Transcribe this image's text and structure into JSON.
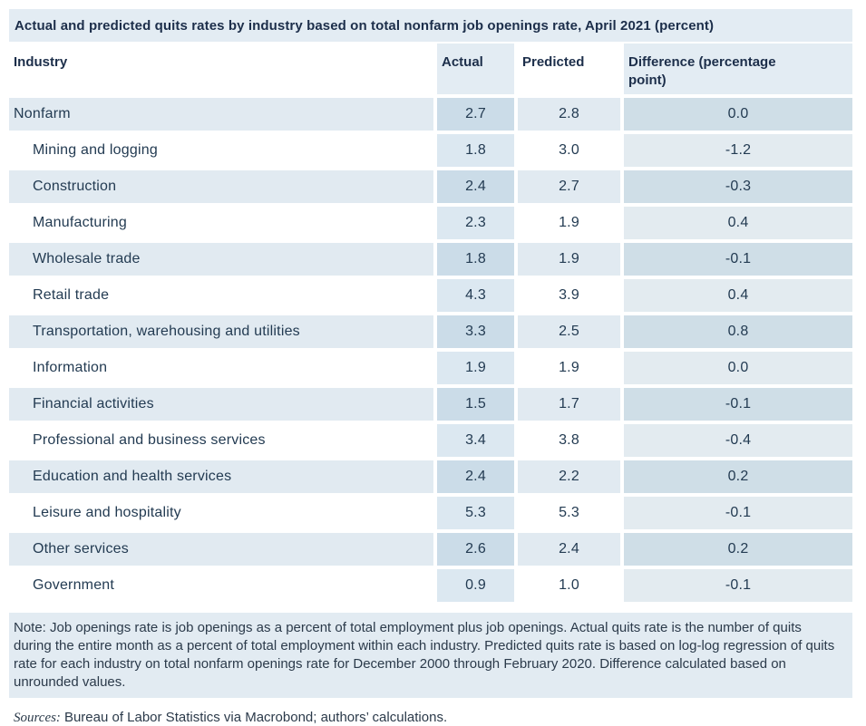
{
  "title": "Actual and predicted quits rates by industry based on total nonfarm job openings rate, April 2021 (percent)",
  "table": {
    "header": {
      "industry": "Industry",
      "actual": "Actual",
      "predicted": "Predicted",
      "difference": "Difference (percentage point)"
    },
    "rows": [
      {
        "industry": "Nonfarm",
        "indent": false,
        "actual": "2.7",
        "predicted": "2.8",
        "difference": "0.0"
      },
      {
        "industry": "Mining and logging",
        "indent": true,
        "actual": "1.8",
        "predicted": "3.0",
        "difference": "-1.2"
      },
      {
        "industry": "Construction",
        "indent": true,
        "actual": "2.4",
        "predicted": "2.7",
        "difference": "-0.3"
      },
      {
        "industry": "Manufacturing",
        "indent": true,
        "actual": "2.3",
        "predicted": "1.9",
        "difference": "0.4"
      },
      {
        "industry": "Wholesale trade",
        "indent": true,
        "actual": "1.8",
        "predicted": "1.9",
        "difference": "-0.1"
      },
      {
        "industry": "Retail trade",
        "indent": true,
        "actual": "4.3",
        "predicted": "3.9",
        "difference": "0.4"
      },
      {
        "industry": "Transportation, warehousing and utilities",
        "indent": true,
        "actual": "3.3",
        "predicted": "2.5",
        "difference": "0.8"
      },
      {
        "industry": "Information",
        "indent": true,
        "actual": "1.9",
        "predicted": "1.9",
        "difference": "0.0"
      },
      {
        "industry": "Financial activities",
        "indent": true,
        "actual": "1.5",
        "predicted": "1.7",
        "difference": "-0.1"
      },
      {
        "industry": "Professional and business services",
        "indent": true,
        "actual": "3.4",
        "predicted": "3.8",
        "difference": "-0.4"
      },
      {
        "industry": "Education and health services",
        "indent": true,
        "actual": "2.4",
        "predicted": "2.2",
        "difference": "0.2"
      },
      {
        "industry": "Leisure and hospitality",
        "indent": true,
        "actual": "5.3",
        "predicted": "5.3",
        "difference": "-0.1"
      },
      {
        "industry": "Other services",
        "indent": true,
        "actual": "2.6",
        "predicted": "2.4",
        "difference": "0.2"
      },
      {
        "industry": "Government",
        "indent": true,
        "actual": "0.9",
        "predicted": "1.0",
        "difference": "-0.1"
      }
    ]
  },
  "note": "Note: Job openings rate is job openings as a percent of total employment plus job openings. Actual quits rate is the number of quits during the entire month as a percent of total employment within each industry. Predicted quits rate is based on log-log regression of quits rate for each industry on total nonfarm openings rate for December 2000 through February 2020. Difference calculated based on unrounded values.",
  "sources": {
    "label": "Sources:",
    "text": "Bureau of Labor Statistics via Macrobond; authors’ calculations."
  },
  "colors": {
    "band": "#e3ecf3",
    "row_shade": "#e1eaf1",
    "actual_tint_light": "#dce8f1",
    "actual_tint_shade": "#cbdce8",
    "diff_tint_light": "#e3ebf0",
    "diff_tint_shade": "#cfdee7",
    "title_text": "#1c2e4a",
    "body_text": "#233b52"
  },
  "chart_data": {
    "type": "table",
    "title": "Actual and predicted quits rates by industry based on total nonfarm job openings rate, April 2021 (percent)",
    "columns": [
      "Industry",
      "Actual",
      "Predicted",
      "Difference (percentage point)"
    ],
    "rows": [
      [
        "Nonfarm",
        2.7,
        2.8,
        0.0
      ],
      [
        "Mining and logging",
        1.8,
        3.0,
        -1.2
      ],
      [
        "Construction",
        2.4,
        2.7,
        -0.3
      ],
      [
        "Manufacturing",
        2.3,
        1.9,
        0.4
      ],
      [
        "Wholesale trade",
        1.8,
        1.9,
        -0.1
      ],
      [
        "Retail trade",
        4.3,
        3.9,
        0.4
      ],
      [
        "Transportation, warehousing and utilities",
        3.3,
        2.5,
        0.8
      ],
      [
        "Information",
        1.9,
        1.9,
        0.0
      ],
      [
        "Financial activities",
        1.5,
        1.7,
        -0.1
      ],
      [
        "Professional and business services",
        3.4,
        3.8,
        -0.4
      ],
      [
        "Education and health services",
        2.4,
        2.2,
        0.2
      ],
      [
        "Leisure and hospitality",
        5.3,
        5.3,
        -0.1
      ],
      [
        "Other services",
        2.6,
        2.4,
        0.2
      ],
      [
        "Government",
        0.9,
        1.0,
        -0.1
      ]
    ]
  }
}
